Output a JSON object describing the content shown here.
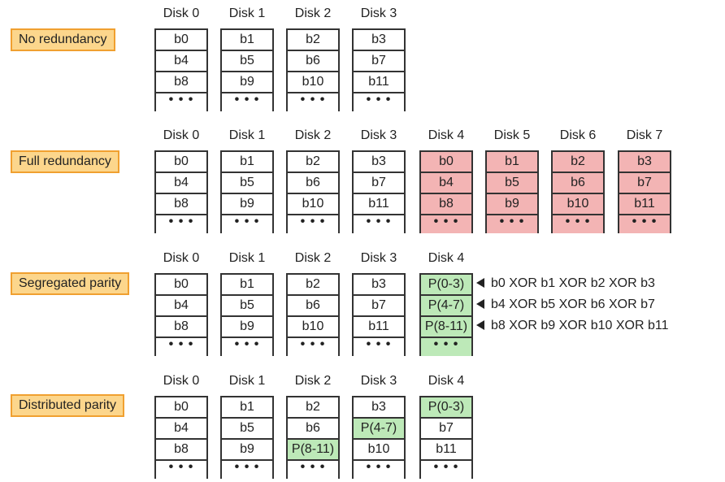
{
  "sections": [
    {
      "label": "No redundancy",
      "disks": [
        {
          "title": "Disk 0",
          "cells": [
            {
              "t": "b0"
            },
            {
              "t": "b4"
            },
            {
              "t": "b8"
            },
            {
              "t": "…",
              "dots": true
            }
          ]
        },
        {
          "title": "Disk 1",
          "cells": [
            {
              "t": "b1"
            },
            {
              "t": "b5"
            },
            {
              "t": "b9"
            },
            {
              "t": "…",
              "dots": true
            }
          ]
        },
        {
          "title": "Disk 2",
          "cells": [
            {
              "t": "b2"
            },
            {
              "t": "b6"
            },
            {
              "t": "b10"
            },
            {
              "t": "…",
              "dots": true
            }
          ]
        },
        {
          "title": "Disk 3",
          "cells": [
            {
              "t": "b3"
            },
            {
              "t": "b7"
            },
            {
              "t": "b11"
            },
            {
              "t": "…",
              "dots": true
            }
          ]
        }
      ],
      "annotations": []
    },
    {
      "label": "Full redundancy",
      "disks": [
        {
          "title": "Disk 0",
          "cells": [
            {
              "t": "b0"
            },
            {
              "t": "b4"
            },
            {
              "t": "b8"
            },
            {
              "t": "…",
              "dots": true
            }
          ]
        },
        {
          "title": "Disk 1",
          "cells": [
            {
              "t": "b1"
            },
            {
              "t": "b5"
            },
            {
              "t": "b9"
            },
            {
              "t": "…",
              "dots": true
            }
          ]
        },
        {
          "title": "Disk 2",
          "cells": [
            {
              "t": "b2"
            },
            {
              "t": "b6"
            },
            {
              "t": "b10"
            },
            {
              "t": "…",
              "dots": true
            }
          ]
        },
        {
          "title": "Disk 3",
          "cells": [
            {
              "t": "b3"
            },
            {
              "t": "b7"
            },
            {
              "t": "b11"
            },
            {
              "t": "…",
              "dots": true
            }
          ]
        },
        {
          "title": "Disk 4",
          "cells": [
            {
              "t": "b0",
              "c": "red"
            },
            {
              "t": "b4",
              "c": "red"
            },
            {
              "t": "b8",
              "c": "red"
            },
            {
              "t": "…",
              "dots": true,
              "c": "red"
            }
          ]
        },
        {
          "title": "Disk 5",
          "cells": [
            {
              "t": "b1",
              "c": "red"
            },
            {
              "t": "b5",
              "c": "red"
            },
            {
              "t": "b9",
              "c": "red"
            },
            {
              "t": "…",
              "dots": true,
              "c": "red"
            }
          ]
        },
        {
          "title": "Disk 6",
          "cells": [
            {
              "t": "b2",
              "c": "red"
            },
            {
              "t": "b6",
              "c": "red"
            },
            {
              "t": "b10",
              "c": "red"
            },
            {
              "t": "…",
              "dots": true,
              "c": "red"
            }
          ]
        },
        {
          "title": "Disk 7",
          "cells": [
            {
              "t": "b3",
              "c": "red"
            },
            {
              "t": "b7",
              "c": "red"
            },
            {
              "t": "b11",
              "c": "red"
            },
            {
              "t": "…",
              "dots": true,
              "c": "red"
            }
          ]
        }
      ],
      "annotations": []
    },
    {
      "label": "Segregated parity",
      "disks": [
        {
          "title": "Disk 0",
          "cells": [
            {
              "t": "b0"
            },
            {
              "t": "b4"
            },
            {
              "t": "b8"
            },
            {
              "t": "…",
              "dots": true
            }
          ]
        },
        {
          "title": "Disk 1",
          "cells": [
            {
              "t": "b1"
            },
            {
              "t": "b5"
            },
            {
              "t": "b9"
            },
            {
              "t": "…",
              "dots": true
            }
          ]
        },
        {
          "title": "Disk 2",
          "cells": [
            {
              "t": "b2"
            },
            {
              "t": "b6"
            },
            {
              "t": "b10"
            },
            {
              "t": "…",
              "dots": true
            }
          ]
        },
        {
          "title": "Disk 3",
          "cells": [
            {
              "t": "b3"
            },
            {
              "t": "b7"
            },
            {
              "t": "b11"
            },
            {
              "t": "…",
              "dots": true
            }
          ]
        },
        {
          "title": "Disk 4",
          "cells": [
            {
              "t": "P(0-3)",
              "c": "green"
            },
            {
              "t": "P(4-7)",
              "c": "green"
            },
            {
              "t": "P(8-11)",
              "c": "green"
            },
            {
              "t": "…",
              "dots": true,
              "c": "green"
            }
          ]
        }
      ],
      "annotations": [
        "b0 XOR b1 XOR b2 XOR b3",
        "b4 XOR b5 XOR b6 XOR b7",
        "b8 XOR b9 XOR b10 XOR b11"
      ]
    },
    {
      "label": "Distributed parity",
      "disks": [
        {
          "title": "Disk 0",
          "cells": [
            {
              "t": "b0"
            },
            {
              "t": "b4"
            },
            {
              "t": "b8"
            },
            {
              "t": "…",
              "dots": true
            }
          ]
        },
        {
          "title": "Disk 1",
          "cells": [
            {
              "t": "b1"
            },
            {
              "t": "b5"
            },
            {
              "t": "b9"
            },
            {
              "t": "…",
              "dots": true
            }
          ]
        },
        {
          "title": "Disk 2",
          "cells": [
            {
              "t": "b2"
            },
            {
              "t": "b6"
            },
            {
              "t": "P(8-11)",
              "c": "green"
            },
            {
              "t": "…",
              "dots": true
            }
          ]
        },
        {
          "title": "Disk 3",
          "cells": [
            {
              "t": "b3"
            },
            {
              "t": "P(4-7)",
              "c": "green"
            },
            {
              "t": "b10"
            },
            {
              "t": "…",
              "dots": true
            }
          ]
        },
        {
          "title": "Disk 4",
          "cells": [
            {
              "t": "P(0-3)",
              "c": "green"
            },
            {
              "t": "b7"
            },
            {
              "t": "b11"
            },
            {
              "t": "…",
              "dots": true
            }
          ]
        }
      ],
      "annotations": []
    }
  ]
}
